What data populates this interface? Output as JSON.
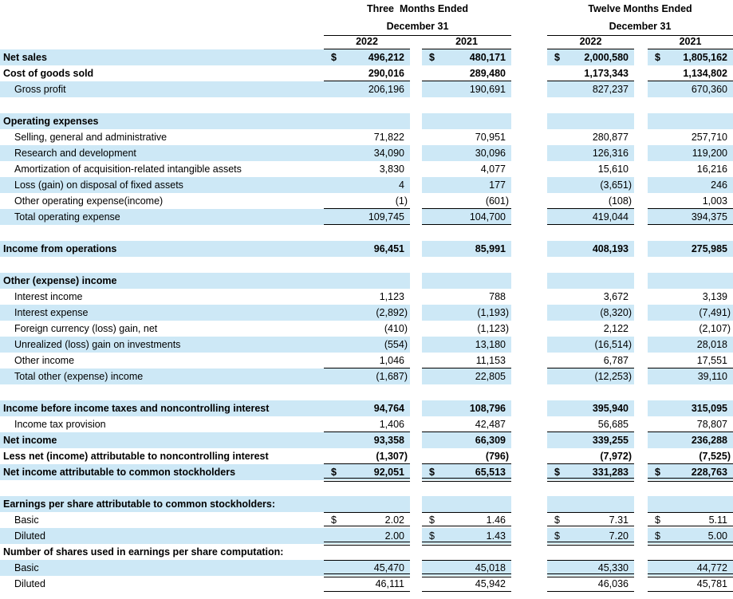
{
  "meta": {
    "stripe_color": "#CDE8F6",
    "text_color": "#000000",
    "border_color": "#000000"
  },
  "header": {
    "groups": [
      {
        "period": "Three  Months Ended",
        "date_line": "December 31",
        "years": [
          "2022",
          "2021"
        ]
      },
      {
        "period": "Twelve Months Ended",
        "date_line": "December 31",
        "years": [
          "2022",
          "2021"
        ]
      }
    ]
  },
  "rows": [
    {
      "label": "Net sales",
      "indent": 0,
      "bold": true,
      "dollars": [
        1,
        1,
        1,
        1
      ],
      "values": [
        "496,212",
        "480,171",
        "2,000,580",
        "1,805,162"
      ]
    },
    {
      "label": "Cost of goods sold",
      "indent": 0,
      "bold": true,
      "bb": "s",
      "values": [
        "290,016",
        "289,480",
        "1,173,343",
        "1,134,802"
      ]
    },
    {
      "label": "Gross profit",
      "indent": 1,
      "bold": false,
      "values": [
        "206,196",
        "190,691",
        "827,237",
        "670,360"
      ]
    },
    {
      "label": "",
      "indent": 0,
      "bold": false,
      "values": [
        "",
        "",
        "",
        ""
      ]
    },
    {
      "label": "Operating expenses",
      "indent": 0,
      "bold": true,
      "values": [
        "",
        "",
        "",
        ""
      ]
    },
    {
      "label": "Selling, general and administrative",
      "indent": 1,
      "bold": false,
      "values": [
        "71,822",
        "70,951",
        "280,877",
        "257,710"
      ]
    },
    {
      "label": "Research and development",
      "indent": 1,
      "bold": false,
      "values": [
        "34,090",
        "30,096",
        "126,316",
        "119,200"
      ]
    },
    {
      "label": "Amortization of acquisition-related intangible assets",
      "indent": 1,
      "bold": false,
      "values": [
        "3,830",
        "4,077",
        "15,610",
        "16,216"
      ]
    },
    {
      "label": "Loss (gain) on disposal of fixed assets",
      "indent": 1,
      "bold": false,
      "values": [
        "4",
        "177",
        "(3,651)",
        "246"
      ]
    },
    {
      "label": "Other operating expense(income)",
      "indent": 1,
      "bold": false,
      "bb": "s",
      "values": [
        "(1)",
        "(601)",
        "(108)",
        "1,003"
      ]
    },
    {
      "label": "Total operating expense",
      "indent": 1,
      "bold": false,
      "bb": "s",
      "values": [
        "109,745",
        "104,700",
        "419,044",
        "394,375"
      ]
    },
    {
      "label": "",
      "indent": 0,
      "bold": false,
      "values": [
        "",
        "",
        "",
        ""
      ]
    },
    {
      "label": "Income from operations",
      "indent": 0,
      "bold": true,
      "values": [
        "96,451",
        "85,991",
        "408,193",
        "275,985"
      ]
    },
    {
      "label": "",
      "indent": 0,
      "bold": false,
      "values": [
        "",
        "",
        "",
        ""
      ]
    },
    {
      "label": "Other (expense) income",
      "indent": 0,
      "bold": true,
      "values": [
        "",
        "",
        "",
        ""
      ]
    },
    {
      "label": "Interest income",
      "indent": 1,
      "bold": false,
      "values": [
        "1,123",
        "788",
        "3,672",
        "3,139"
      ]
    },
    {
      "label": "Interest expense",
      "indent": 1,
      "bold": false,
      "values": [
        "(2,892)",
        "(1,193)",
        "(8,320)",
        "(7,491)"
      ]
    },
    {
      "label": "Foreign currency (loss) gain, net",
      "indent": 1,
      "bold": false,
      "values": [
        "(410)",
        "(1,123)",
        "2,122",
        "(2,107)"
      ]
    },
    {
      "label": "Unrealized (loss) gain on investments",
      "indent": 1,
      "bold": false,
      "values": [
        "(554)",
        "13,180",
        "(16,514)",
        "28,018"
      ]
    },
    {
      "label": "Other income",
      "indent": 1,
      "bold": false,
      "bb": "s",
      "values": [
        "1,046",
        "11,153",
        "6,787",
        "17,551"
      ]
    },
    {
      "label": "Total other (expense) income",
      "indent": 1,
      "bold": false,
      "values": [
        "(1,687)",
        "22,805",
        "(12,253)",
        "39,110"
      ]
    },
    {
      "label": "",
      "indent": 0,
      "bold": false,
      "values": [
        "",
        "",
        "",
        ""
      ]
    },
    {
      "label": "Income before income taxes and noncontrolling interest",
      "indent": 0,
      "bold": true,
      "values": [
        "94,764",
        "108,796",
        "395,940",
        "315,095"
      ]
    },
    {
      "label": "Income tax provision",
      "indent": 1,
      "bold": false,
      "bb": "s",
      "values": [
        "1,406",
        "42,487",
        "56,685",
        "78,807"
      ]
    },
    {
      "label": "Net income",
      "indent": 0,
      "bold": true,
      "values": [
        "93,358",
        "66,309",
        "339,255",
        "236,288"
      ]
    },
    {
      "label": "Less net (income) attributable to noncontrolling interest",
      "indent": 0,
      "bold": true,
      "bb": "s",
      "values": [
        "(1,307)",
        "(796)",
        "(7,972)",
        "(7,525)"
      ]
    },
    {
      "label": "Net income attributable to common stockholders",
      "indent": 0,
      "bold": true,
      "dollars": [
        1,
        1,
        1,
        1
      ],
      "bb": "d",
      "values": [
        "92,051",
        "65,513",
        "331,283",
        "228,763"
      ]
    },
    {
      "label": "",
      "indent": 0,
      "bold": false,
      "values": [
        "",
        "",
        "",
        ""
      ]
    },
    {
      "label": "Earnings per share attributable to common stockholders:",
      "indent": 0,
      "bold": true,
      "values": [
        "",
        "",
        "",
        ""
      ]
    },
    {
      "label": "Basic",
      "indent": 1,
      "bold": false,
      "dollars": [
        1,
        1,
        1,
        1
      ],
      "bt": 1,
      "bb": "d",
      "values": [
        "2.02",
        "1.46",
        "7.31",
        "5.11"
      ]
    },
    {
      "label": "Diluted",
      "indent": 1,
      "bold": false,
      "dollars": [
        0,
        1,
        1,
        1
      ],
      "bb": "d",
      "values": [
        "2.00",
        "1.43",
        "7.20",
        "5.00"
      ]
    },
    {
      "label": "Number of shares used in earnings per share computation:",
      "indent": 0,
      "bold": true,
      "values": [
        "",
        "",
        "",
        ""
      ]
    },
    {
      "label": "Basic",
      "indent": 1,
      "bold": false,
      "bt": 1,
      "bb": "d",
      "values": [
        "45,470",
        "45,018",
        "45,330",
        "44,772"
      ]
    },
    {
      "label": "Diluted",
      "indent": 1,
      "bold": false,
      "bb": "s",
      "values": [
        "46,111",
        "45,942",
        "46,036",
        "45,781"
      ]
    }
  ]
}
